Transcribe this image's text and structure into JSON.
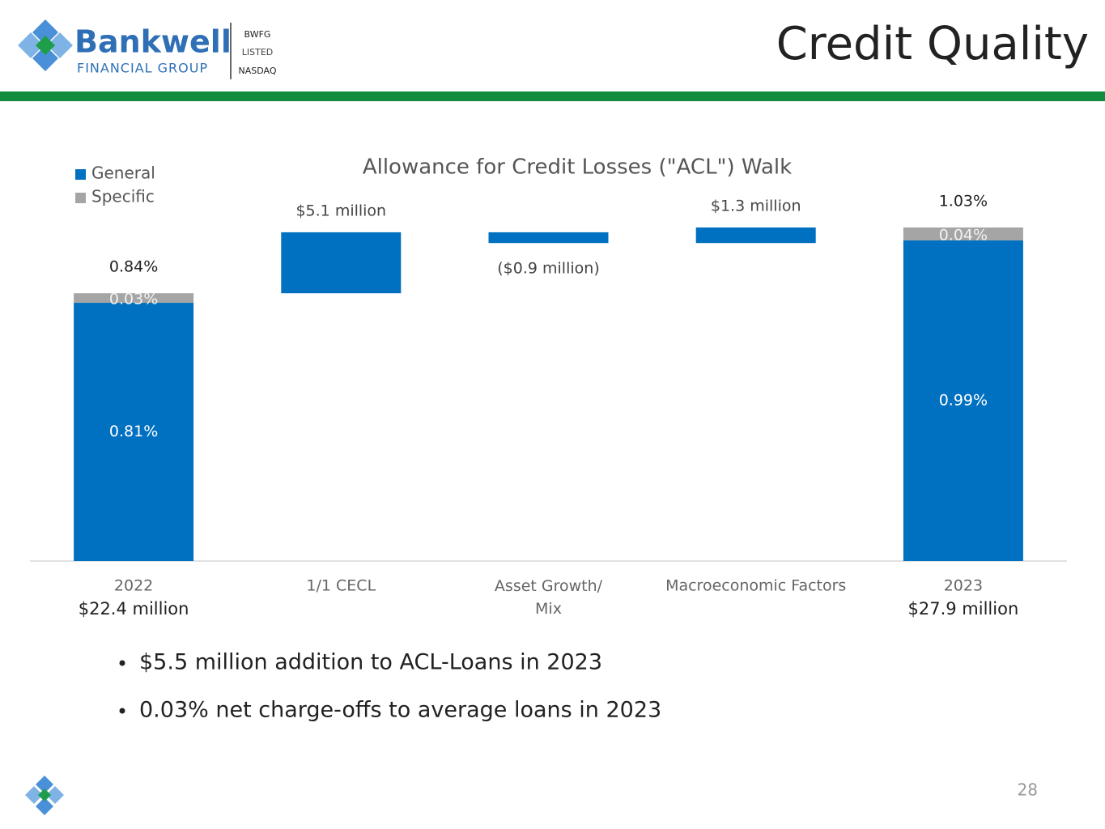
{
  "header": {
    "brand": "Bankwell",
    "brand_sub": "FINANCIAL GROUP",
    "ticker": "BWFG",
    "listed": "LISTED",
    "exchange": "NASDAQ",
    "title": "Credit Quality"
  },
  "chart_data": {
    "type": "waterfall",
    "title": "Allowance for Credit Losses (\"ACL\") Walk",
    "categories": [
      "2022",
      "1/1 CECL",
      "Asset Growth/ Mix",
      "Macroeconomic Factors",
      "2023"
    ],
    "values": [
      22.4,
      5.1,
      -0.9,
      1.3,
      27.9
    ],
    "value_labels": [
      "$22.4 million",
      "$5.1 million",
      "($0.9 million)",
      "$1.3 million",
      "$27.9 million"
    ],
    "color": "#0070c0",
    "series": [
      {
        "name": "General",
        "color": "#0070c0",
        "values": [
          0.81,
          null,
          null,
          null,
          0.99
        ],
        "value_labels": [
          "0.81%",
          null,
          null,
          null,
          "0.99%"
        ]
      },
      {
        "name": "Specific",
        "color": "#a5a5a5",
        "values": [
          0.03,
          null,
          null,
          null,
          0.04
        ],
        "value_labels": [
          "0.03%",
          null,
          null,
          null,
          "0.04%"
        ]
      }
    ],
    "ratios": [
      0.84,
      null,
      null,
      null,
      1.03
    ],
    "ratio_labels": [
      "0.84%",
      null,
      null,
      null,
      "1.03%"
    ],
    "legend": "top-left"
  },
  "bullets": [
    "$5.5 million addition to ACL-Loans in 2023",
    "0.03% net charge-offs to average loans in 2023"
  ],
  "page_number": "28"
}
